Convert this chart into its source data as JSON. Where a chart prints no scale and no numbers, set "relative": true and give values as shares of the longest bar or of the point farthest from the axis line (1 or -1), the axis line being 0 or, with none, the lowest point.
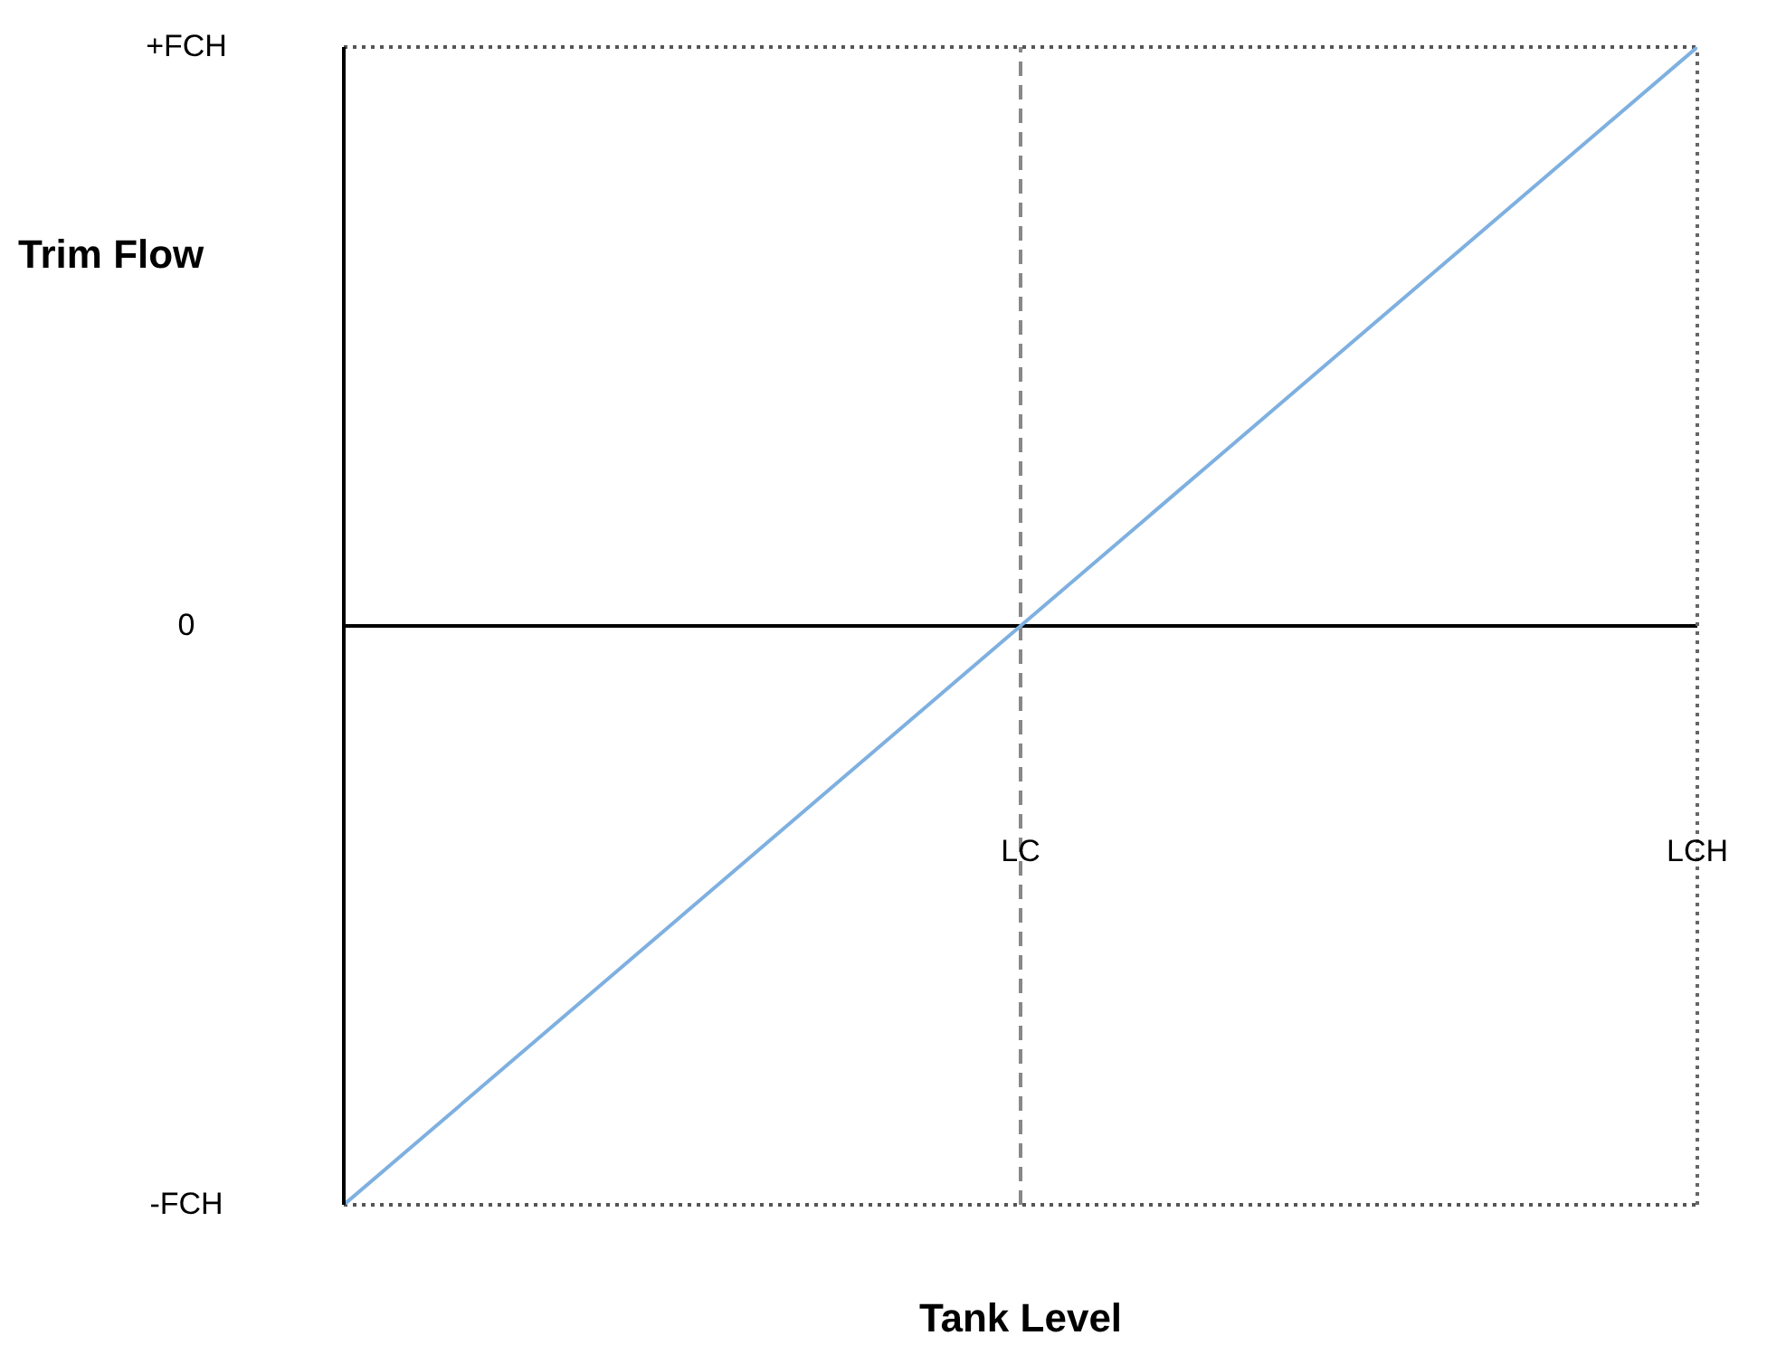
{
  "chart_data": {
    "type": "line",
    "xlabel": "Tank Level",
    "ylabel": "Trim Flow",
    "relative": true,
    "categories": [
      null,
      "LC",
      "LCH"
    ],
    "series": [
      {
        "color": "#7eb0e0",
        "values": [
          -1,
          0,
          1
        ]
      }
    ],
    "annotations": [
      "+FCH",
      "0",
      "-FCH"
    ],
    "ref_lines": [
      {
        "axis": "y",
        "value": 0,
        "color": "#000000",
        "line_style": "solid"
      },
      {
        "axis": "y",
        "value": 1,
        "color": "#555555",
        "line_style": "dotted"
      },
      {
        "axis": "y",
        "value": -1,
        "color": "#555555",
        "line_style": "dotted"
      },
      {
        "axis": "x",
        "value": "LCH",
        "color": "#666666",
        "line_style": "dotted"
      },
      {
        "axis": "x",
        "value": "LC",
        "color": "#888888",
        "line_style": "dashed"
      }
    ],
    "grid": false,
    "legend": false,
    "marker": "none",
    "line_style": "solid"
  }
}
